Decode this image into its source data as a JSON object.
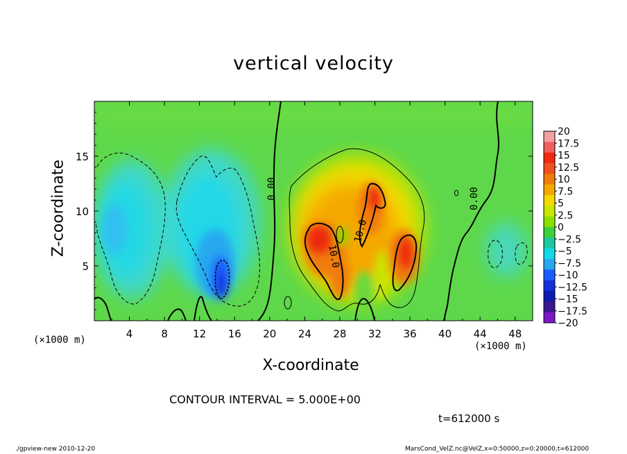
{
  "chart_data": {
    "type": "heatmap",
    "title": "vertical velocity",
    "xlabel": "X-coordinate",
    "ylabel": "Z-coordinate",
    "x_unit": "(×1000 m)",
    "xlim": [
      0,
      50
    ],
    "ylim": [
      0,
      20
    ],
    "x_ticks": [
      4,
      8,
      12,
      16,
      20,
      24,
      28,
      32,
      36,
      40,
      44,
      48
    ],
    "y_ticks": [
      5,
      10,
      15
    ],
    "colorbar": {
      "levels": [
        "20",
        "17.5",
        "15",
        "12.5",
        "10",
        "7.5",
        "5",
        "2.5",
        "0",
        "−2.5",
        "−5",
        "−7.5",
        "−10",
        "−12.5",
        "−15",
        "−17.5",
        "−20"
      ],
      "colors": [
        "#f4a0a0",
        "#f06060",
        "#ee2a10",
        "#f05020",
        "#f07c0a",
        "#f5a800",
        "#f5d800",
        "#c8e600",
        "#8ee000",
        "#3cd03c",
        "#1ec8a0",
        "#12d8e8",
        "#28a8f0",
        "#1a5cff",
        "#1230dc",
        "#0e1ab0",
        "#3a1890",
        "#7a18c8"
      ]
    },
    "contour_labels": [
      "0.00",
      "0.00",
      "10.0",
      "10.0"
    ],
    "contour_interval": "CONTOUR INTERVAL = 5.000E+00",
    "time": "t=612000 s"
  },
  "footer": {
    "left": "./gpview-new  2010-12-20",
    "right": "MarsCond_VelZ.nc@VelZ,x=0:50000,z=0:20000,t=612000"
  }
}
